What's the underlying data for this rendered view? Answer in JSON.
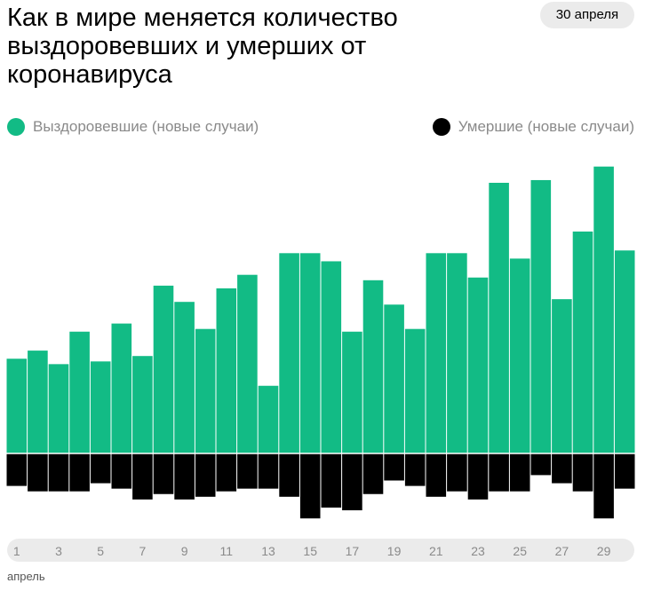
{
  "header": {
    "title": "Как в мире меняется количество выздоровевших и умерших от коронавируса",
    "date_badge": "30 апреля"
  },
  "legend": {
    "recovered_label": "Выздоровевшие (новые случаи)",
    "deaths_label": "Умершие (новые случаи)"
  },
  "colors": {
    "recovered": "#12bb85",
    "deaths": "#000000",
    "axis_strip": "#ebebeb",
    "tick_text": "#8a8a8a"
  },
  "chart_data": {
    "type": "bar",
    "orientation": "diverging",
    "categories": [
      "1",
      "2",
      "3",
      "4",
      "5",
      "6",
      "7",
      "8",
      "9",
      "10",
      "11",
      "12",
      "13",
      "14",
      "15",
      "16",
      "17",
      "18",
      "19",
      "20",
      "21",
      "22",
      "23",
      "24",
      "25",
      "26",
      "27",
      "28",
      "29",
      "30"
    ],
    "tick_labels": [
      "1",
      "3",
      "5",
      "7",
      "9",
      "11",
      "13",
      "15",
      "17",
      "19",
      "21",
      "23",
      "25",
      "27",
      "29"
    ],
    "tick_categories": [
      "1",
      "3",
      "5",
      "7",
      "9",
      "11",
      "13",
      "15",
      "17",
      "19",
      "21",
      "23",
      "25",
      "27",
      "29"
    ],
    "month_label": "апрель",
    "series": [
      {
        "name": "Выздоровевшие (новые случаи)",
        "values": [
          35,
          38,
          33,
          45,
          34,
          48,
          36,
          62,
          56,
          46,
          61,
          66,
          25,
          74,
          74,
          71,
          45,
          64,
          55,
          46,
          74,
          74,
          65,
          100,
          72,
          101,
          57,
          82,
          106,
          75
        ]
      },
      {
        "name": "Умершие (новые случаи)",
        "values": [
          -12,
          -14,
          -14,
          -14,
          -11,
          -13,
          -17,
          -15,
          -17,
          -16,
          -14,
          -13,
          -13,
          -16,
          -24,
          -20,
          -21,
          -15,
          -10,
          -12,
          -16,
          -14,
          -17,
          -14,
          -14,
          -8,
          -11,
          -14,
          -24,
          -13
        ]
      }
    ],
    "ylim": [
      -30,
      110
    ],
    "grid": false,
    "legend_position": "top"
  }
}
